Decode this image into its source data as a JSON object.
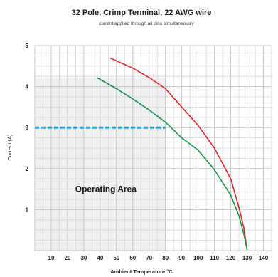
{
  "chart_data": {
    "type": "line",
    "title": "32 Pole, Crimp Terminal, 22 AWG wire",
    "subtitle": "current applied through all pins simultaneously",
    "xlabel": "Ambient Temperature °C",
    "ylabel": "Current (A)",
    "xlim": [
      0,
      145
    ],
    "ylim": [
      0,
      5
    ],
    "grid": true,
    "legend": "none",
    "x_ticks": [
      "10",
      "20",
      "30",
      "40",
      "50",
      "60",
      "70",
      "80",
      "90",
      "100",
      "110",
      "120",
      "130",
      "140"
    ],
    "y_ticks": [
      "1",
      "2",
      "3",
      "4",
      "5"
    ],
    "series": [
      {
        "color": "#e0262b",
        "points": [
          [
            46,
            4.7
          ],
          [
            60,
            4.45
          ],
          [
            70,
            4.22
          ],
          [
            80,
            3.95
          ],
          [
            90,
            3.5
          ],
          [
            100,
            3.05
          ],
          [
            110,
            2.5
          ],
          [
            120,
            1.75
          ],
          [
            125,
            1.05
          ],
          [
            128,
            0.55
          ],
          [
            130,
            0.02
          ]
        ]
      },
      {
        "color": "#159449",
        "points": [
          [
            38,
            4.22
          ],
          [
            50,
            3.95
          ],
          [
            60,
            3.7
          ],
          [
            70,
            3.43
          ],
          [
            80,
            3.13
          ],
          [
            90,
            2.75
          ],
          [
            100,
            2.45
          ],
          [
            110,
            1.97
          ],
          [
            120,
            1.35
          ],
          [
            125,
            0.85
          ],
          [
            128,
            0.4
          ],
          [
            130,
            0.02
          ]
        ]
      }
    ],
    "operating_area": {
      "label": "Operating Area",
      "x_end": 80,
      "y_top": 4.2,
      "fill": "#f0f0f2"
    },
    "reference_line": {
      "y": 3.0,
      "x_start": 0,
      "x_end": 80,
      "color": "#29a8df",
      "style": "dashed"
    }
  }
}
